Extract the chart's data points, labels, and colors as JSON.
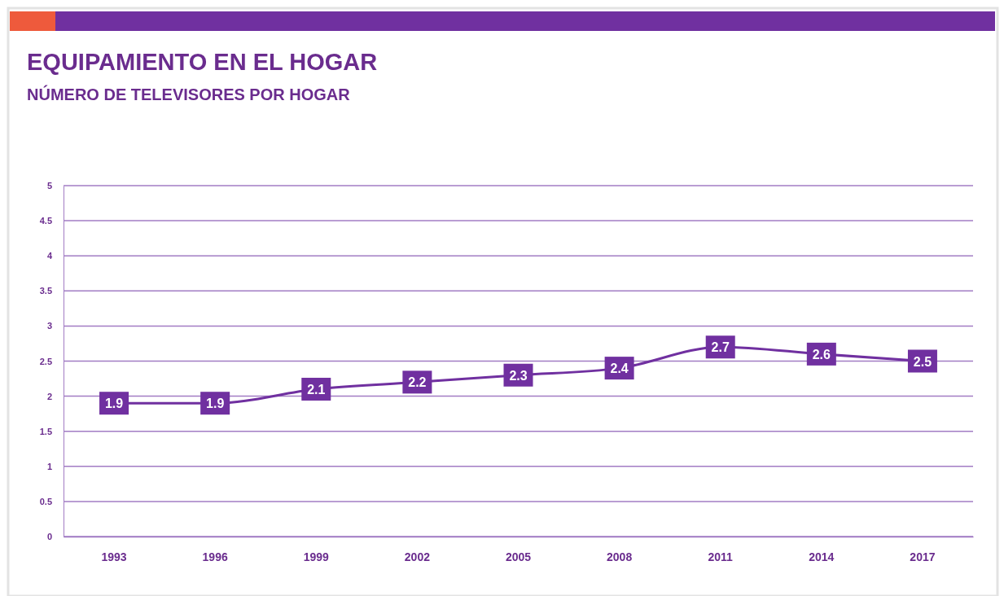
{
  "chart_data": {
    "type": "line",
    "title": "EQUIPAMIENTO EN EL HOGAR",
    "subtitle": "NÚMERO DE TELEVISORES POR HOGAR",
    "categories": [
      "1993",
      "1996",
      "1999",
      "2002",
      "2005",
      "2008",
      "2011",
      "2014",
      "2017"
    ],
    "series": [
      {
        "color": "#7030a0",
        "values": [
          1.9,
          1.9,
          2.1,
          2.2,
          2.3,
          2.4,
          2.7,
          2.6,
          2.5
        ]
      }
    ],
    "ylim": [
      0,
      5
    ],
    "yticks": [
      0,
      0.5,
      1,
      1.5,
      2,
      2.5,
      3,
      3.5,
      4,
      4.5,
      5
    ],
    "grid": "y",
    "data_labels": true,
    "marker": "square"
  }
}
